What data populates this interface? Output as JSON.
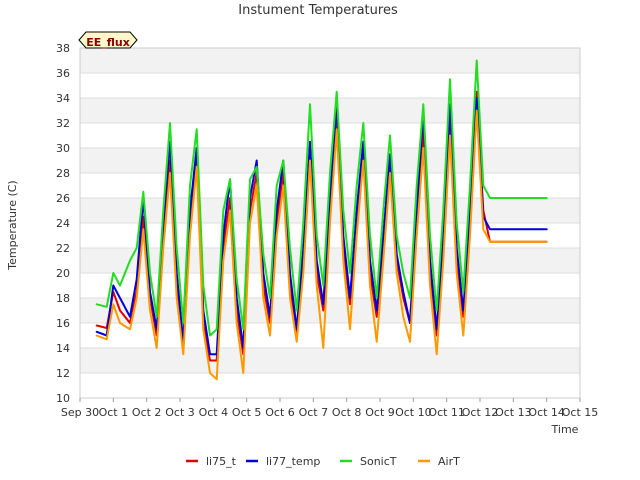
{
  "chart_data": {
    "type": "line",
    "title": "Instument Temperatures",
    "xlabel": "Time",
    "ylabel": "Temperature (C)",
    "ylim": [
      10,
      38
    ],
    "yticks": [
      10,
      12,
      14,
      16,
      18,
      20,
      22,
      24,
      26,
      28,
      30,
      32,
      34,
      36,
      38
    ],
    "xlim": [
      0,
      15
    ],
    "xticks": [
      0,
      1,
      2,
      3,
      4,
      5,
      6,
      7,
      8,
      9,
      10,
      11,
      12,
      13,
      14,
      15
    ],
    "xtick_labels": [
      "Sep 30",
      "Oct 1",
      "Oct 2",
      "Oct 3",
      "Oct 4",
      "Oct 5",
      "Oct 6",
      "Oct 7",
      "Oct 8",
      "Oct 9",
      "Oct 10",
      "Oct 11",
      "Oct 12",
      "Oct 13",
      "Oct 14",
      "Oct 15"
    ],
    "grid": "horizontal bands",
    "legend_position": "bottom",
    "annotation": "EE_flux",
    "series": [
      {
        "name": "li75_t",
        "color": "#dd0000",
        "x": [
          0.5,
          0.8,
          1.0,
          1.2,
          1.5,
          1.7,
          1.9,
          2.1,
          2.3,
          2.5,
          2.7,
          2.9,
          3.1,
          3.3,
          3.5,
          3.7,
          3.9,
          4.1,
          4.3,
          4.5,
          4.7,
          4.9,
          5.1,
          5.3,
          5.5,
          5.7,
          5.9,
          6.1,
          6.3,
          6.5,
          6.7,
          6.9,
          7.1,
          7.3,
          7.5,
          7.7,
          7.9,
          8.1,
          8.3,
          8.5,
          8.7,
          8.9,
          9.1,
          9.3,
          9.5,
          9.7,
          9.9,
          10.1,
          10.3,
          10.5,
          10.7,
          10.9,
          11.1,
          11.3,
          11.5,
          11.7,
          11.9,
          12.1,
          12.3,
          12.5,
          12.7,
          12.9,
          13.1,
          13.3,
          13.5,
          13.7,
          13.9,
          14.0
        ],
        "y": [
          15.8,
          15.6,
          18.5,
          17.0,
          16.0,
          18.5,
          24.5,
          18.0,
          15.0,
          23.0,
          29.0,
          19.0,
          14.0,
          24.0,
          29.5,
          16.0,
          13.0,
          13.0,
          22.0,
          26.0,
          17.0,
          13.5,
          25.0,
          28.0,
          19.0,
          16.0,
          24.0,
          28.0,
          19.0,
          15.0,
          21.0,
          29.5,
          20.0,
          17.0,
          25.0,
          32.0,
          22.0,
          17.5,
          24.0,
          29.5,
          20.0,
          16.5,
          22.0,
          28.5,
          21.0,
          18.0,
          16.0,
          24.0,
          31.5,
          20.0,
          15.0,
          22.0,
          32.0,
          21.0,
          16.5,
          24.0,
          34.5,
          25.0,
          22.5,
          22.5,
          22.5,
          22.5,
          22.5,
          22.5,
          22.5,
          22.5,
          22.5,
          22.5
        ]
      },
      {
        "name": "li77_temp",
        "color": "#0000dd",
        "x": [
          0.5,
          0.8,
          1.0,
          1.2,
          1.5,
          1.7,
          1.9,
          2.1,
          2.3,
          2.5,
          2.7,
          2.9,
          3.1,
          3.3,
          3.5,
          3.7,
          3.9,
          4.1,
          4.3,
          4.5,
          4.7,
          4.9,
          5.1,
          5.3,
          5.5,
          5.7,
          5.9,
          6.1,
          6.3,
          6.5,
          6.7,
          6.9,
          7.1,
          7.3,
          7.5,
          7.7,
          7.9,
          8.1,
          8.3,
          8.5,
          8.7,
          8.9,
          9.1,
          9.3,
          9.5,
          9.7,
          9.9,
          10.1,
          10.3,
          10.5,
          10.7,
          10.9,
          11.1,
          11.3,
          11.5,
          11.7,
          11.9,
          12.1,
          12.3,
          12.5,
          12.7,
          12.9,
          13.1,
          13.3,
          13.5,
          13.7,
          13.9,
          14.0
        ],
        "y": [
          15.3,
          15.0,
          19.0,
          18.0,
          16.5,
          19.5,
          26.0,
          18.5,
          15.5,
          24.0,
          30.5,
          20.0,
          14.5,
          25.0,
          30.0,
          17.0,
          13.5,
          13.5,
          23.0,
          27.5,
          18.0,
          14.0,
          26.0,
          29.0,
          20.0,
          16.5,
          25.0,
          29.0,
          20.0,
          15.5,
          22.0,
          30.5,
          21.0,
          17.5,
          26.0,
          33.5,
          23.0,
          18.0,
          25.0,
          30.5,
          21.0,
          17.0,
          23.0,
          29.5,
          21.5,
          18.5,
          16.0,
          25.0,
          33.0,
          21.0,
          15.5,
          23.0,
          33.5,
          22.0,
          17.0,
          25.0,
          34.0,
          24.5,
          23.5,
          23.5,
          23.5,
          23.5,
          23.5,
          23.5,
          23.5,
          23.5,
          23.5,
          23.5
        ]
      },
      {
        "name": "SonicT",
        "color": "#22dd22",
        "x": [
          0.5,
          0.8,
          1.0,
          1.2,
          1.5,
          1.7,
          1.9,
          2.1,
          2.3,
          2.5,
          2.7,
          2.9,
          3.1,
          3.3,
          3.5,
          3.7,
          3.9,
          4.1,
          4.3,
          4.5,
          4.7,
          4.9,
          5.1,
          5.3,
          5.5,
          5.7,
          5.9,
          6.1,
          6.3,
          6.5,
          6.7,
          6.9,
          7.1,
          7.3,
          7.5,
          7.7,
          7.9,
          8.1,
          8.3,
          8.5,
          8.7,
          8.9,
          9.1,
          9.3,
          9.5,
          9.7,
          9.9,
          10.1,
          10.3,
          10.5,
          10.7,
          10.9,
          11.1,
          11.3,
          11.5,
          11.7,
          11.9,
          12.1,
          12.3,
          12.5,
          12.7,
          12.9,
          13.1,
          13.3,
          13.5,
          13.7,
          13.9,
          14.0
        ],
        "y": [
          17.5,
          17.3,
          20.0,
          19.0,
          21.0,
          22.0,
          26.5,
          20.0,
          16.5,
          25.0,
          32.0,
          22.0,
          16.0,
          27.0,
          31.5,
          19.0,
          15.0,
          15.5,
          25.0,
          27.5,
          19.5,
          15.5,
          27.5,
          28.5,
          21.5,
          18.0,
          27.0,
          29.0,
          22.0,
          17.0,
          24.0,
          33.5,
          23.0,
          19.0,
          28.0,
          34.5,
          25.0,
          20.0,
          27.0,
          32.0,
          23.0,
          18.0,
          25.0,
          31.0,
          23.0,
          20.0,
          18.0,
          27.0,
          33.5,
          23.0,
          17.0,
          25.0,
          35.5,
          24.0,
          18.5,
          27.0,
          37.0,
          27.0,
          26.0,
          26.0,
          26.0,
          26.0,
          26.0,
          26.0,
          26.0,
          26.0,
          26.0,
          26.0
        ]
      },
      {
        "name": "AirT",
        "color": "#ff9900",
        "x": [
          0.5,
          0.8,
          1.0,
          1.2,
          1.5,
          1.7,
          1.9,
          2.1,
          2.3,
          2.5,
          2.7,
          2.9,
          3.1,
          3.3,
          3.5,
          3.7,
          3.9,
          4.1,
          4.3,
          4.5,
          4.7,
          4.9,
          5.1,
          5.3,
          5.5,
          5.7,
          5.9,
          6.1,
          6.3,
          6.5,
          6.7,
          6.9,
          7.1,
          7.3,
          7.5,
          7.7,
          7.9,
          8.1,
          8.3,
          8.5,
          8.7,
          8.9,
          9.1,
          9.3,
          9.5,
          9.7,
          9.9,
          10.1,
          10.3,
          10.5,
          10.7,
          10.9,
          11.1,
          11.3,
          11.5,
          11.7,
          11.9,
          12.1,
          12.3,
          12.5,
          12.7,
          12.9,
          13.1,
          13.3,
          13.5,
          13.7,
          13.9,
          14.0
        ],
        "y": [
          15.0,
          14.7,
          17.5,
          16.0,
          15.5,
          18.0,
          23.5,
          17.0,
          14.0,
          22.0,
          28.0,
          18.0,
          13.5,
          23.0,
          28.5,
          15.5,
          12.0,
          11.5,
          21.0,
          25.0,
          16.0,
          12.0,
          24.0,
          27.0,
          18.0,
          15.0,
          23.0,
          27.0,
          18.0,
          14.5,
          20.0,
          29.0,
          19.0,
          14.0,
          24.0,
          31.5,
          21.0,
          15.5,
          23.0,
          29.0,
          19.0,
          14.5,
          21.0,
          28.0,
          20.0,
          16.5,
          14.5,
          23.0,
          30.0,
          19.0,
          13.5,
          21.0,
          31.0,
          20.0,
          15.0,
          23.0,
          33.0,
          23.5,
          22.5,
          22.5,
          22.5,
          22.5,
          22.5,
          22.5,
          22.5,
          22.5,
          22.5,
          22.5
        ]
      }
    ]
  }
}
